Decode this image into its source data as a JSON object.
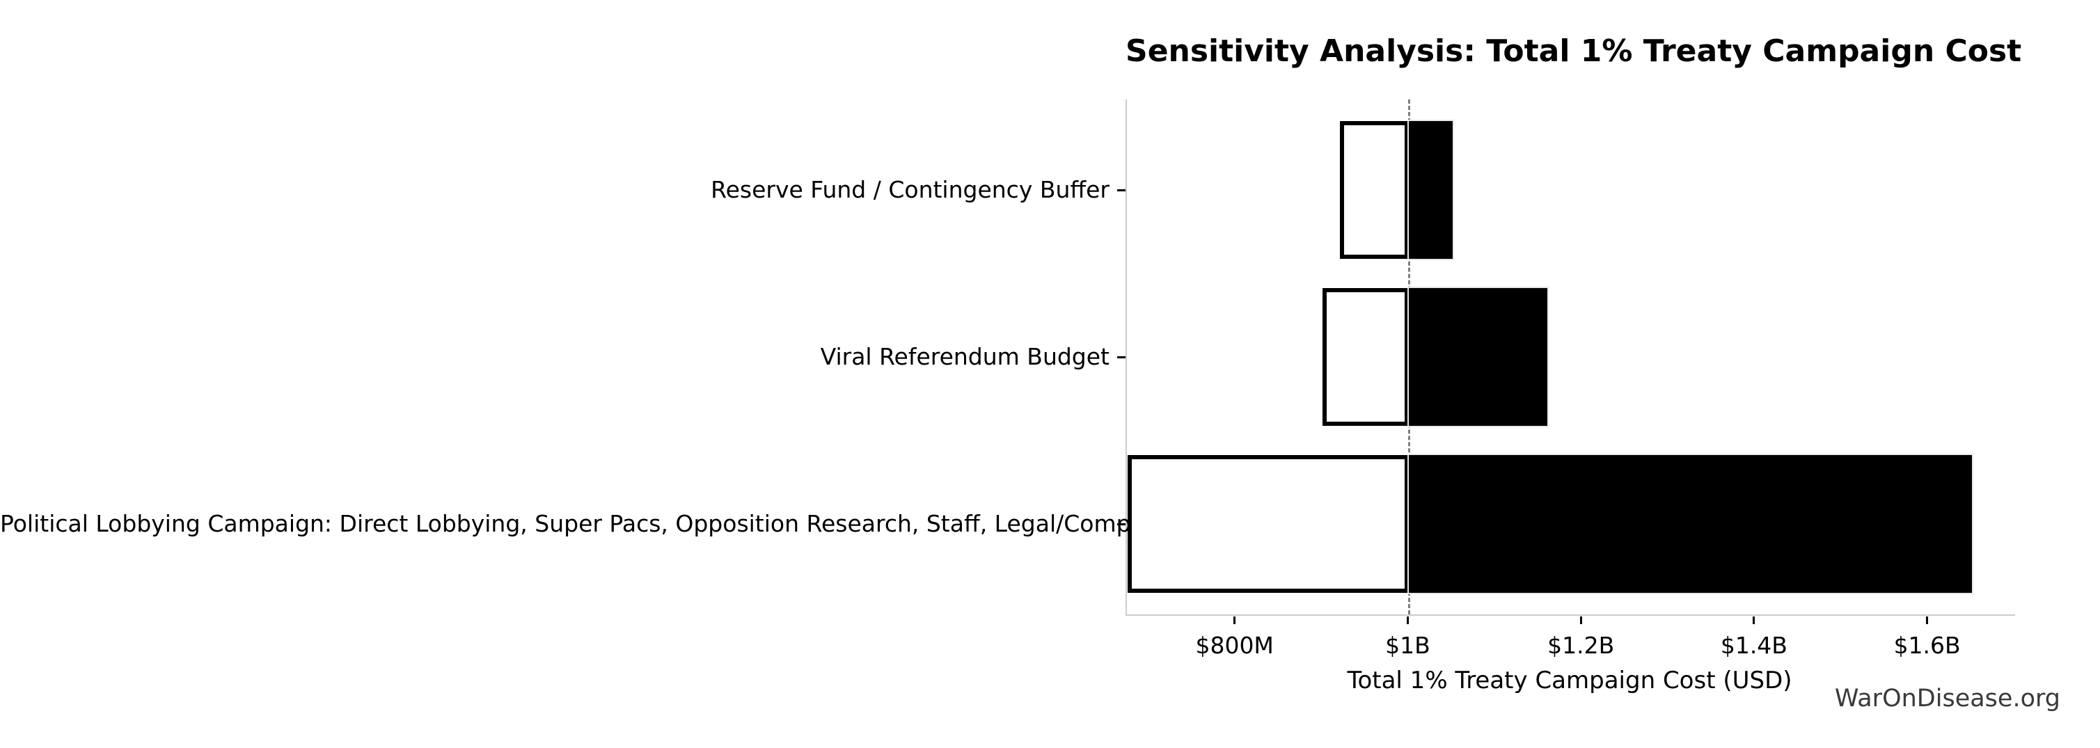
{
  "watermark": "WarOnDisease.org",
  "chart_data": {
    "type": "bar",
    "subtype": "tornado-sensitivity",
    "orientation": "horizontal",
    "title": "Sensitivity Analysis: Total 1% Treaty Campaign Cost",
    "xlabel": "Total 1% Treaty Campaign Cost (USD)",
    "values_unit": "USD millions",
    "baseline_value": 1000,
    "xlim": [
      674,
      1700
    ],
    "grid": false,
    "legend": null,
    "x_ticks": [
      {
        "value": 800,
        "label": "$800M"
      },
      {
        "value": 1000,
        "label": "$1B"
      },
      {
        "value": 1200,
        "label": "$1.2B"
      },
      {
        "value": 1400,
        "label": "$1.4B"
      },
      {
        "value": 1600,
        "label": "$1.6B"
      }
    ],
    "categories": [
      {
        "label": "Reserve Fund / Contingency Buffer",
        "low": 920,
        "high": 1050
      },
      {
        "label": "Viral Referendum Budget",
        "low": 900,
        "high": 1160
      },
      {
        "label": "Political Lobbying Campaign: Direct Lobbying, Super Pacs, Opposition Research, Staff, Legal/Compliance",
        "low": 675,
        "high": 1650
      }
    ],
    "colors": {
      "low_segment_fill": "#ffffff",
      "low_segment_edge": "#000000",
      "high_segment_fill": "#000000",
      "baseline_line": "#7f7f7f",
      "spine": "#cccccc",
      "text": "#000000",
      "watermark_text": "#3a3a3a",
      "background": "#ffffff"
    }
  }
}
